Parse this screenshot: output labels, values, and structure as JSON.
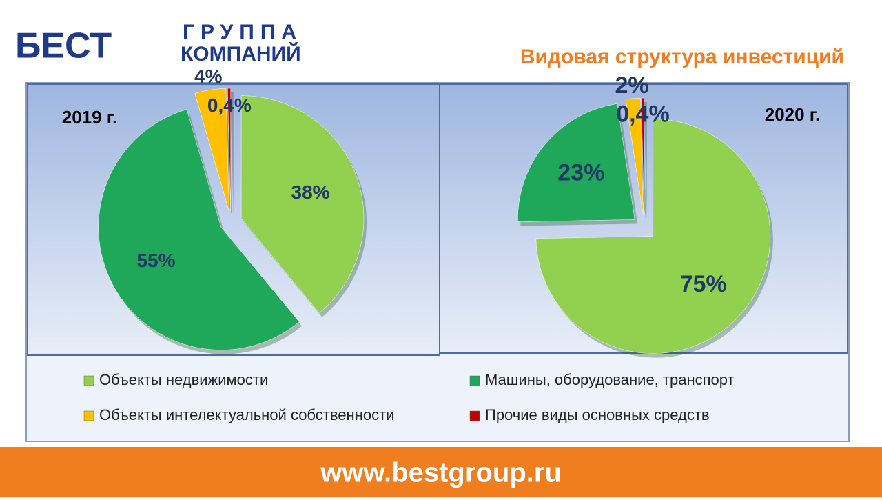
{
  "header": {
    "logo": "БЕСТ",
    "logo_sub": [
      "ГРУППА",
      "КОМПАНИЙ"
    ],
    "title": "Видовая структура  инвестиций"
  },
  "chart_data": [
    {
      "type": "pie",
      "title": "2019 г.",
      "categories": [
        "Объекты недвижимости",
        "Машины, оборудование, транспорт",
        "Объекты интелектуальной собственности",
        "Прочие виды основных средств"
      ],
      "values": [
        38,
        55,
        4,
        0.4
      ],
      "value_labels": [
        "38%",
        "55%",
        "4%",
        "0,4%"
      ],
      "colors": [
        "#92d050",
        "#1fa85a",
        "#ffc000",
        "#c00000"
      ]
    },
    {
      "type": "pie",
      "title": "2020 г.",
      "categories": [
        "Объекты недвижимости",
        "Машины, оборудование, транспорт",
        "Объекты интелектуальной собственности",
        "Прочие виды основных средств"
      ],
      "values": [
        75,
        23,
        2,
        0.4
      ],
      "value_labels": [
        "75%",
        "23%",
        "2%",
        "0,4%"
      ],
      "colors": [
        "#92d050",
        "#1fa85a",
        "#ffc000",
        "#c00000"
      ]
    }
  ],
  "footer": {
    "url": "www.bestgroup.ru"
  }
}
